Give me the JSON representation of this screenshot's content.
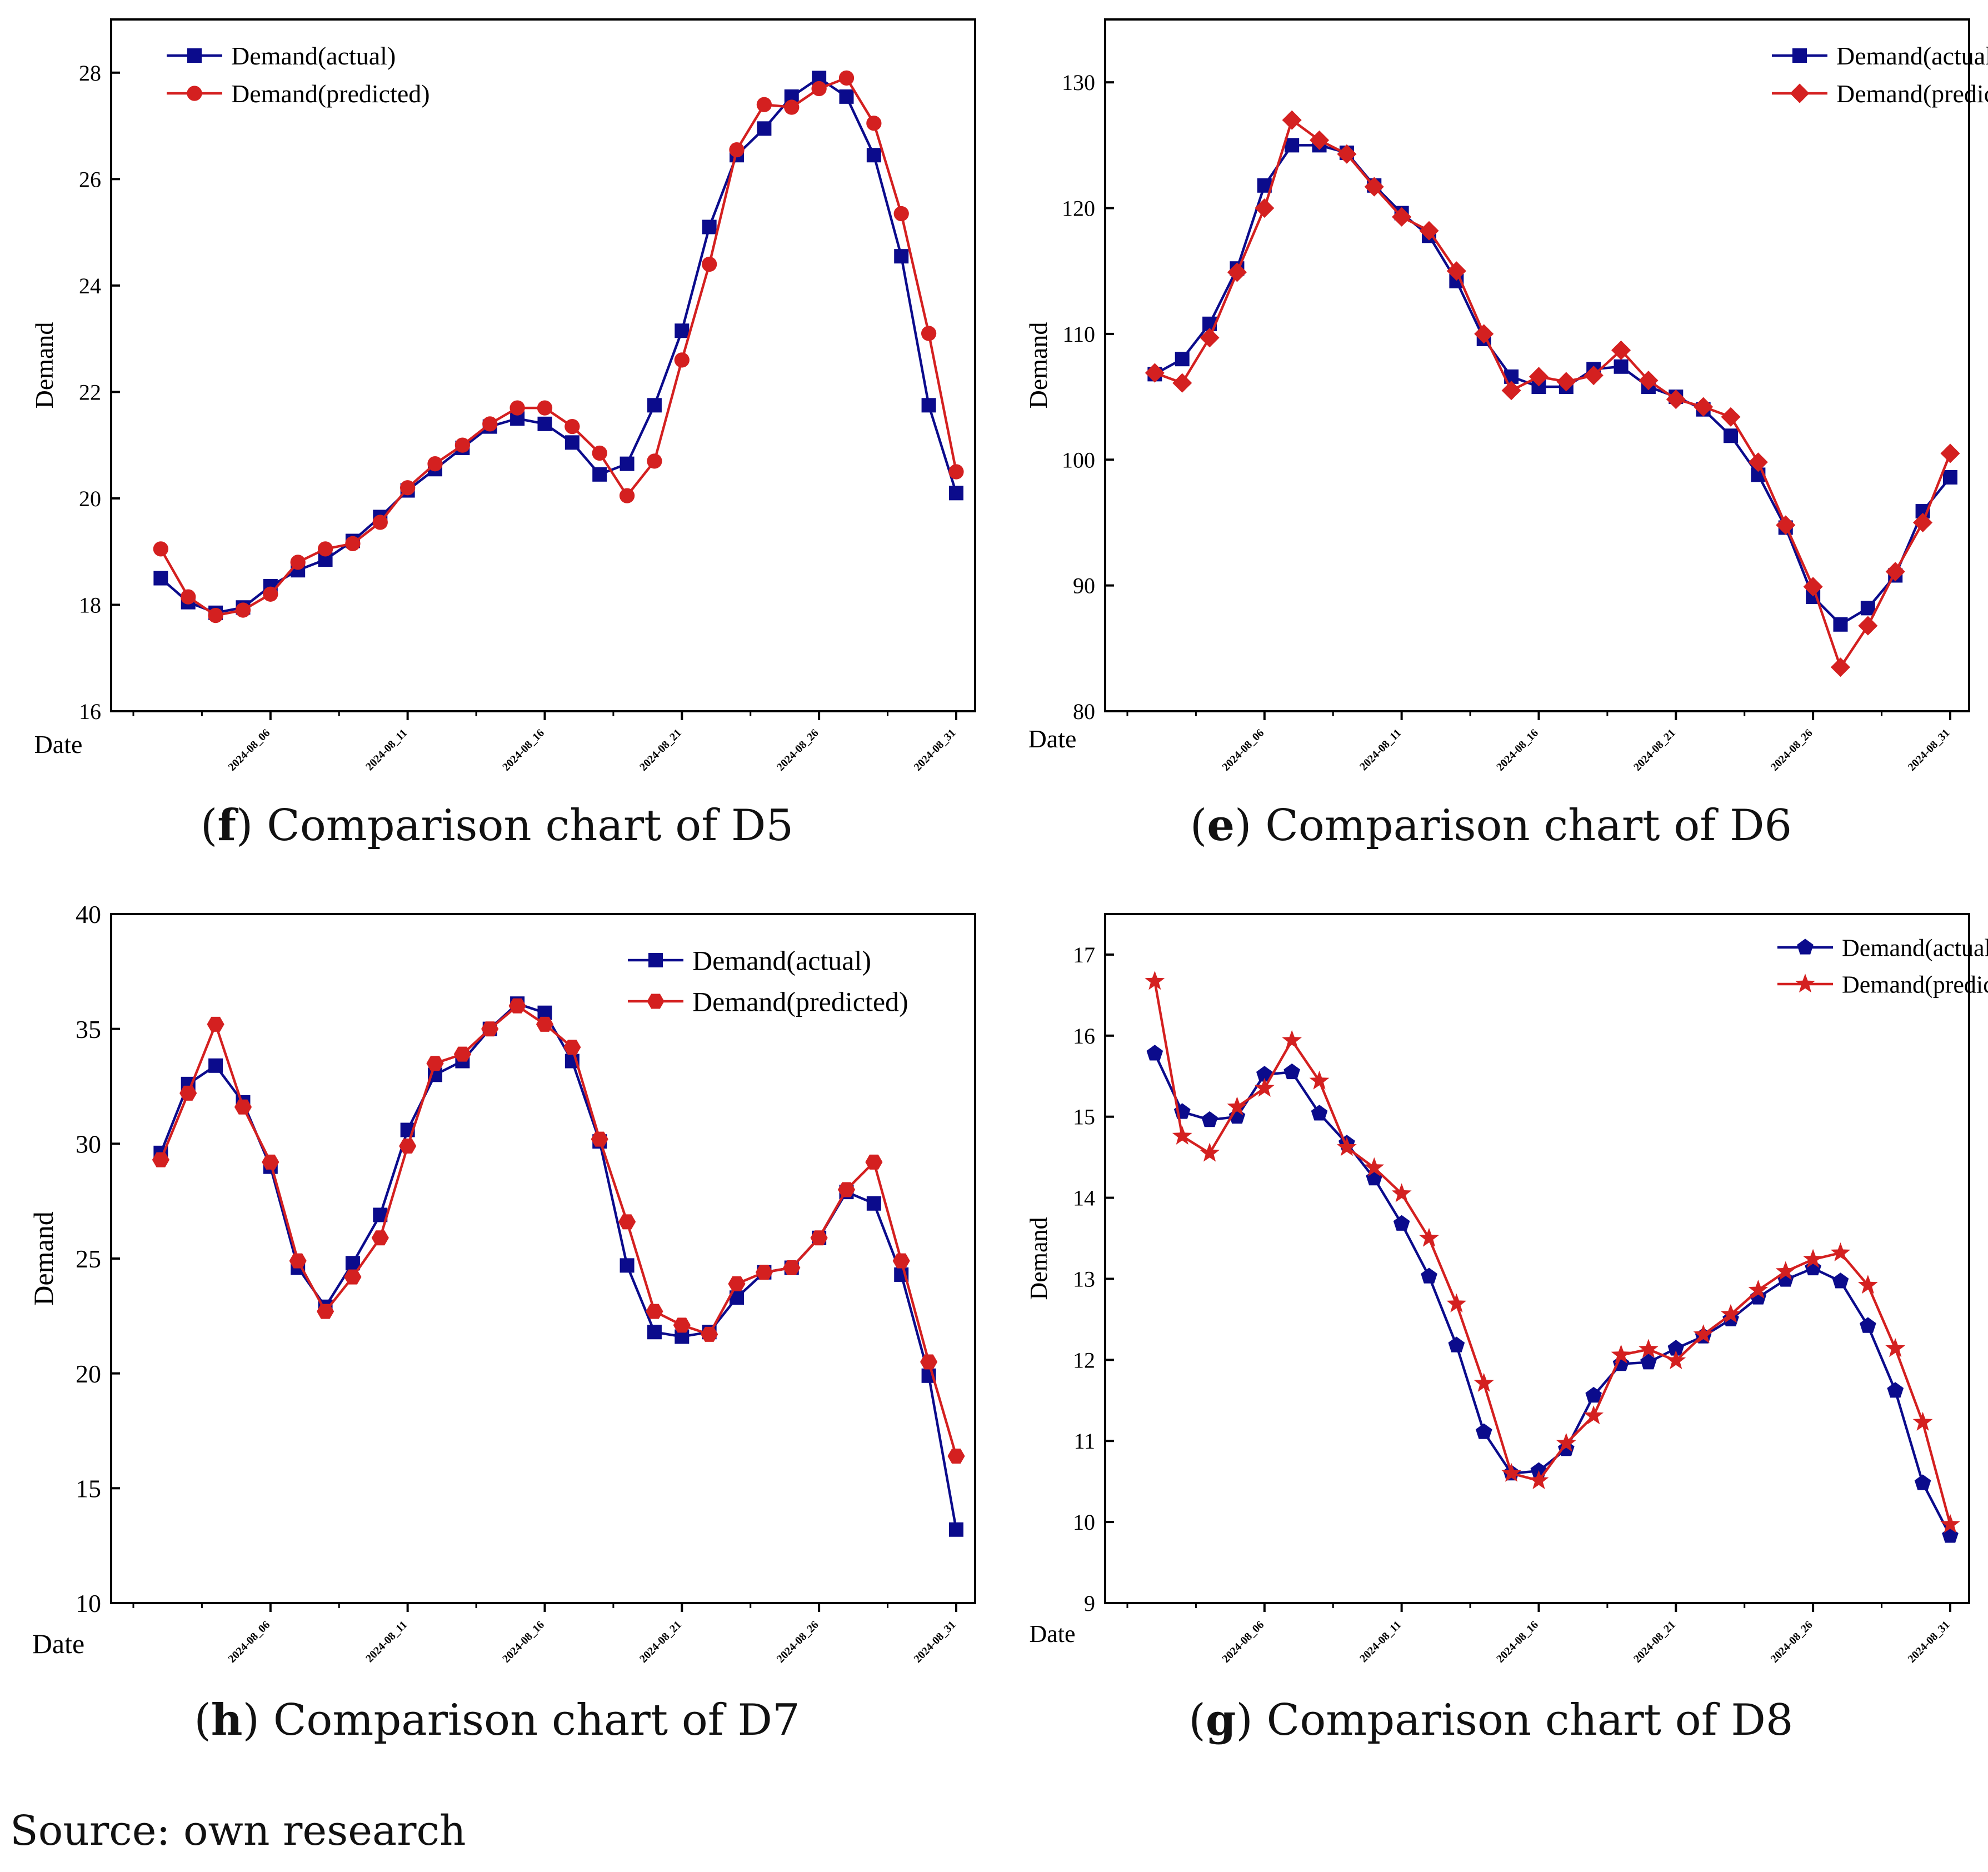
{
  "source_note": "Source: own research",
  "colors": {
    "actual": "#0b0b8c",
    "predicted": "#d42020",
    "axis": "#000000"
  },
  "chart_data": [
    {
      "panel": "top-left",
      "type": "line",
      "caption_letter": "f",
      "caption_text": "Comparison chart of D5",
      "xlabel": "Date",
      "ylabel": "Demand",
      "x_ticks": [
        "2024-08_06",
        "2024-08_11",
        "2024-08_16",
        "2024-08_21",
        "2024-08_26",
        "2024-08_31"
      ],
      "x_tick_days": [
        6,
        11,
        16,
        21,
        26,
        31
      ],
      "x_range": [
        1,
        31
      ],
      "x": [
        2,
        3,
        4,
        5,
        6,
        7,
        8,
        9,
        10,
        11,
        12,
        13,
        14,
        15,
        16,
        17,
        18,
        19,
        20,
        21,
        22,
        23,
        24,
        25,
        26,
        27,
        28,
        29,
        30,
        31
      ],
      "ylim": [
        16,
        29
      ],
      "y_ticks": [
        16,
        18,
        20,
        22,
        24,
        26,
        28
      ],
      "legend_position": "top-left",
      "series": [
        {
          "name": "Demand(actual)",
          "marker": "square",
          "values": [
            18.5,
            18.05,
            17.85,
            17.95,
            18.35,
            18.65,
            18.85,
            19.2,
            19.65,
            20.15,
            20.55,
            20.95,
            21.35,
            21.5,
            21.4,
            21.05,
            20.45,
            20.65,
            21.75,
            23.15,
            25.1,
            26.45,
            26.95,
            27.55,
            27.9,
            27.55,
            26.45,
            24.55,
            21.75,
            20.1
          ]
        },
        {
          "name": "Demand(predicted)",
          "marker": "circle",
          "values": [
            19.05,
            18.15,
            17.8,
            17.9,
            18.2,
            18.8,
            19.05,
            19.15,
            19.55,
            20.2,
            20.65,
            21.0,
            21.4,
            21.7,
            21.7,
            21.35,
            20.85,
            20.05,
            20.7,
            22.6,
            24.4,
            26.55,
            27.4,
            27.35,
            27.7,
            27.9,
            27.05,
            25.35,
            23.1,
            20.5
          ]
        }
      ]
    },
    {
      "panel": "top-right",
      "type": "line",
      "caption_letter": "e",
      "caption_text": "Comparison chart of D6",
      "xlabel": "Date",
      "ylabel": "Demand",
      "x_ticks": [
        "2024-08_06",
        "2024-08_11",
        "2024-08_16",
        "2024-08_21",
        "2024-08_26",
        "2024-08_31"
      ],
      "x_tick_days": [
        6,
        11,
        16,
        21,
        26,
        31
      ],
      "x_range": [
        1,
        31
      ],
      "x": [
        2,
        3,
        4,
        5,
        6,
        7,
        8,
        9,
        10,
        11,
        12,
        13,
        14,
        15,
        16,
        17,
        18,
        19,
        20,
        21,
        22,
        23,
        24,
        25,
        26,
        27,
        28,
        29,
        30,
        31
      ],
      "ylim": [
        80,
        135
      ],
      "y_ticks": [
        80,
        90,
        100,
        110,
        120,
        130
      ],
      "legend_position": "top-right",
      "series": [
        {
          "name": "Demand(actual)",
          "marker": "square",
          "values": [
            106.8,
            108.0,
            110.8,
            115.2,
            121.8,
            125.0,
            125.0,
            124.4,
            121.8,
            119.6,
            117.8,
            114.2,
            109.6,
            106.6,
            105.8,
            105.8,
            107.2,
            107.4,
            105.8,
            105.0,
            104.0,
            101.9,
            98.8,
            94.6,
            89.1,
            86.9,
            88.2,
            90.8,
            95.9,
            98.6
          ]
        },
        {
          "name": "Demand(predicted)",
          "marker": "diamond",
          "values": [
            106.9,
            106.1,
            109.7,
            114.9,
            120.0,
            127.0,
            125.4,
            124.3,
            121.7,
            119.3,
            118.2,
            115.0,
            110.0,
            105.5,
            106.6,
            106.2,
            106.7,
            108.7,
            106.3,
            104.8,
            104.2,
            103.4,
            99.8,
            94.8,
            89.9,
            83.5,
            86.8,
            91.1,
            95.0,
            100.5
          ]
        }
      ]
    },
    {
      "panel": "bottom-left",
      "type": "line",
      "caption_letter": "h",
      "caption_text": "Comparison chart of D7",
      "xlabel": "Date",
      "ylabel": "Demand",
      "x_ticks": [
        "2024-08_06",
        "2024-08_11",
        "2024-08_16",
        "2024-08_21",
        "2024-08_26",
        "2024-08_31"
      ],
      "x_tick_days": [
        6,
        11,
        16,
        21,
        26,
        31
      ],
      "x_range": [
        1,
        31
      ],
      "x": [
        2,
        3,
        4,
        5,
        6,
        7,
        8,
        9,
        10,
        11,
        12,
        13,
        14,
        15,
        16,
        17,
        18,
        19,
        20,
        21,
        22,
        23,
        24,
        25,
        26,
        27,
        28,
        29,
        30,
        31
      ],
      "ylim": [
        10,
        40
      ],
      "y_ticks": [
        10,
        15,
        20,
        25,
        30,
        35,
        40
      ],
      "legend_position": "top-right",
      "series": [
        {
          "name": "Demand(actual)",
          "marker": "square",
          "values": [
            29.6,
            32.6,
            33.4,
            31.8,
            29.0,
            24.6,
            22.9,
            24.8,
            26.9,
            30.6,
            33.0,
            33.6,
            35.0,
            36.1,
            35.7,
            33.6,
            30.1,
            24.7,
            21.8,
            21.6,
            21.8,
            23.3,
            24.4,
            24.6,
            25.9,
            27.9,
            27.4,
            24.3,
            19.9,
            13.2
          ]
        },
        {
          "name": "Demand(predicted)",
          "marker": "hexagon",
          "values": [
            29.3,
            32.2,
            35.2,
            31.6,
            29.2,
            24.9,
            22.7,
            24.2,
            25.9,
            29.9,
            33.5,
            33.9,
            35.0,
            36.0,
            35.2,
            34.2,
            30.2,
            26.6,
            22.7,
            22.1,
            21.7,
            23.9,
            24.4,
            24.6,
            25.9,
            28.0,
            29.2,
            24.9,
            20.5,
            16.4
          ]
        }
      ]
    },
    {
      "panel": "bottom-right",
      "type": "line",
      "caption_letter": "g",
      "caption_text": "Comparison chart of D8",
      "xlabel": "Date",
      "ylabel": "Demand",
      "x_ticks": [
        "2024-08_06",
        "2024-08_11",
        "2024-08_16",
        "2024-08_21",
        "2024-08_26",
        "2024-08_31"
      ],
      "x_tick_days": [
        6,
        11,
        16,
        21,
        26,
        31
      ],
      "x_range": [
        1,
        31
      ],
      "x": [
        2,
        3,
        4,
        5,
        6,
        7,
        8,
        9,
        10,
        11,
        12,
        13,
        14,
        15,
        16,
        17,
        18,
        19,
        20,
        21,
        22,
        23,
        24,
        25,
        26,
        27,
        28,
        29,
        30,
        31
      ],
      "ylim": [
        9,
        17.5
      ],
      "y_ticks": [
        9,
        10,
        11,
        12,
        13,
        14,
        15,
        16,
        17
      ],
      "legend_position": "top-right",
      "series": [
        {
          "name": "Demand(actual)",
          "marker": "pentagon",
          "values": [
            15.78,
            15.06,
            14.96,
            15.0,
            15.52,
            15.55,
            15.04,
            14.67,
            14.24,
            13.68,
            13.03,
            12.18,
            11.11,
            10.6,
            10.63,
            10.9,
            11.56,
            11.95,
            11.97,
            12.14,
            12.29,
            12.5,
            12.77,
            12.99,
            13.13,
            12.97,
            12.42,
            11.62,
            10.48,
            9.83
          ]
        },
        {
          "name": "Demand(predicted)",
          "marker": "star",
          "values": [
            16.67,
            14.76,
            14.55,
            15.12,
            15.35,
            15.94,
            15.44,
            14.62,
            14.37,
            14.05,
            13.5,
            12.69,
            11.71,
            10.6,
            10.51,
            10.97,
            11.31,
            12.06,
            12.13,
            11.99,
            12.31,
            12.56,
            12.86,
            13.09,
            13.24,
            13.32,
            12.92,
            12.14,
            11.23,
            9.97
          ]
        }
      ]
    }
  ]
}
